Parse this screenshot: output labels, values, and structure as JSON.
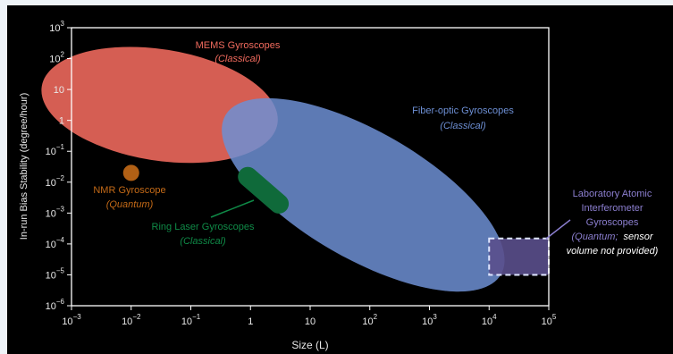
{
  "chart_data": {
    "type": "scatter",
    "xlabel": "Size (L)",
    "ylabel": "In-run Bias Stability (degree/hour)",
    "x_scale": "log",
    "y_scale": "log",
    "xlim": [
      0.001,
      100000
    ],
    "ylim": [
      1e-06,
      1000
    ],
    "grid": false,
    "x_ticks": [
      {
        "base": "10",
        "exp": "−3"
      },
      {
        "base": "10",
        "exp": "−2"
      },
      {
        "base": "10",
        "exp": "−1"
      },
      {
        "base": "1",
        "exp": ""
      },
      {
        "base": "10",
        "exp": ""
      },
      {
        "base": "10",
        "exp": "2"
      },
      {
        "base": "10",
        "exp": "3"
      },
      {
        "base": "10",
        "exp": "4"
      },
      {
        "base": "10",
        "exp": "5"
      }
    ],
    "y_ticks": [
      {
        "base": "10",
        "exp": "−6"
      },
      {
        "base": "10",
        "exp": "−5"
      },
      {
        "base": "10",
        "exp": "−4"
      },
      {
        "base": "10",
        "exp": "−3"
      },
      {
        "base": "10",
        "exp": "−2"
      },
      {
        "base": "10",
        "exp": "−1"
      },
      {
        "base": "1",
        "exp": ""
      },
      {
        "base": "10",
        "exp": ""
      },
      {
        "base": "10",
        "exp": "2"
      },
      {
        "base": "10",
        "exp": "3"
      }
    ],
    "regions": [
      {
        "name": "MEMS Gyroscopes",
        "category": "(Classical)",
        "color": "#f26b5e",
        "shape": "ellipse",
        "x_range": [
          0.0003,
          3
        ],
        "y_range": [
          0.05,
          200
        ]
      },
      {
        "name": "Fiber-optic Gyroscopes",
        "category": "(Classical)",
        "color": "#6d8fd4",
        "shape": "ellipse",
        "x_range": [
          0.3,
          20000
        ],
        "y_range": [
          1.5e-05,
          1
        ]
      },
      {
        "name": "NMR Gyroscope",
        "category": "(Quantum)",
        "color": "#c46a17",
        "shape": "point",
        "x": 0.01,
        "y": 0.02
      },
      {
        "name": "Ring Laser Gyroscopes",
        "category": "(Classical)",
        "color": "#0f6a3a",
        "shape": "capsule",
        "x_range": [
          0.9,
          3
        ],
        "y_range": [
          0.002,
          0.015
        ]
      },
      {
        "name": "Laboratory Atomic Interferometer Gyroscopes",
        "category": "(Quantum;",
        "note": "sensor volume not provided)",
        "color": "#5a4f8c",
        "shape": "dashed-rect",
        "x_range": [
          10000,
          100000
        ],
        "y_range": [
          1e-05,
          0.00015
        ]
      }
    ],
    "labels": {
      "mems": [
        "MEMS Gyroscopes",
        "(Classical)"
      ],
      "fiber": [
        "Fiber-optic Gyroscopes",
        "(Classical)"
      ],
      "nmr": [
        "NMR Gyroscope",
        "(Quantum)"
      ],
      "ring": [
        "Ring Laser Gyroscopes",
        "(Classical)"
      ],
      "atomic": [
        "Laboratory Atomic",
        "Interferometer",
        "Gyroscopes",
        "(Quantum;",
        "sensor",
        "volume not provided)"
      ]
    }
  }
}
